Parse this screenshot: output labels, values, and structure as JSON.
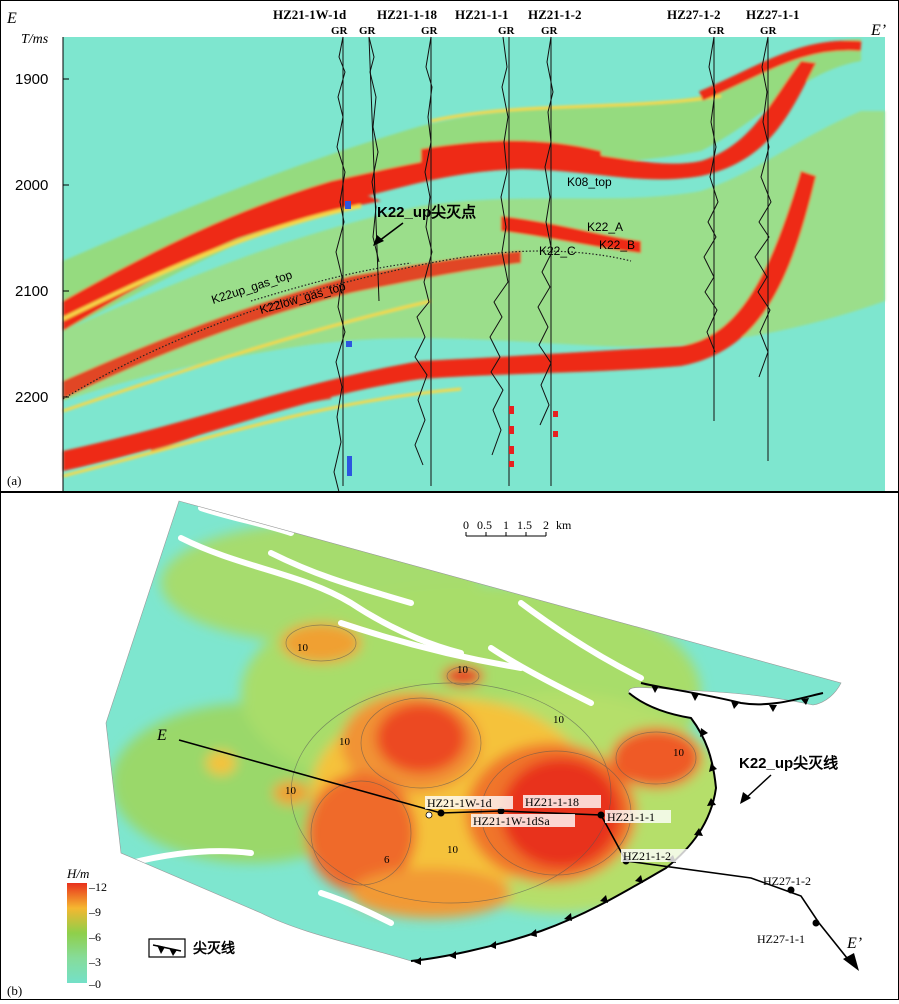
{
  "panel_a": {
    "label": "(a)",
    "axis_unit": "T/ms",
    "left_marker": "E",
    "right_marker": "E’",
    "time_ticks": [
      "1900",
      "2000",
      "2100",
      "2200"
    ],
    "wells": [
      {
        "name": "HZ21-1W-1d",
        "log": "GR",
        "log2": "GR"
      },
      {
        "name": "HZ21-1-18",
        "log": "GR"
      },
      {
        "name": "HZ21-1-1",
        "log": "GR"
      },
      {
        "name": "HZ21-1-2",
        "log": "GR"
      },
      {
        "name": "HZ27-1-2",
        "log": "GR"
      },
      {
        "name": "HZ27-1-1",
        "log": "GR"
      }
    ],
    "annotations": {
      "pinchout_point": "K22_up尖灭点",
      "k08_top": "K08_top",
      "k22_a": "K22_A",
      "k22_b": "K22_B",
      "k22_c": "K22_C",
      "k22up_gas_top": "K22up_gas_top",
      "k22low_gas_top": "K22low_gas_top"
    }
  },
  "panel_b": {
    "label": "(b)",
    "scale_label": "0  0.5 1  1.5  2 km",
    "scale_ticks": [
      "0",
      "0.5",
      "1",
      "1.5",
      "2"
    ],
    "scale_unit": "km",
    "line_start": "E",
    "line_end": "E’",
    "pinchout_line_label": "K22_up尖灭线",
    "legend_title": "H/m",
    "legend_ticks": [
      "12",
      "9",
      "6",
      "3",
      "0"
    ],
    "symbol_legend": "尖灭线",
    "contour_labels": [
      "10",
      "10",
      "10",
      "10",
      "10",
      "10",
      "10",
      "6"
    ],
    "wells": [
      {
        "name": "HZ21-1W-1d"
      },
      {
        "name": "HZ21-1-18"
      },
      {
        "name": "HZ21-1W-1dSa"
      },
      {
        "name": "HZ21-1-1"
      },
      {
        "name": "HZ21-1-2"
      },
      {
        "name": "HZ27-1-2"
      },
      {
        "name": "HZ27-1-1"
      }
    ],
    "colors": {
      "thick": "#e8311d",
      "mid": "#f5b730",
      "green": "#8fcf4a",
      "thin": "#74e0c8"
    }
  }
}
